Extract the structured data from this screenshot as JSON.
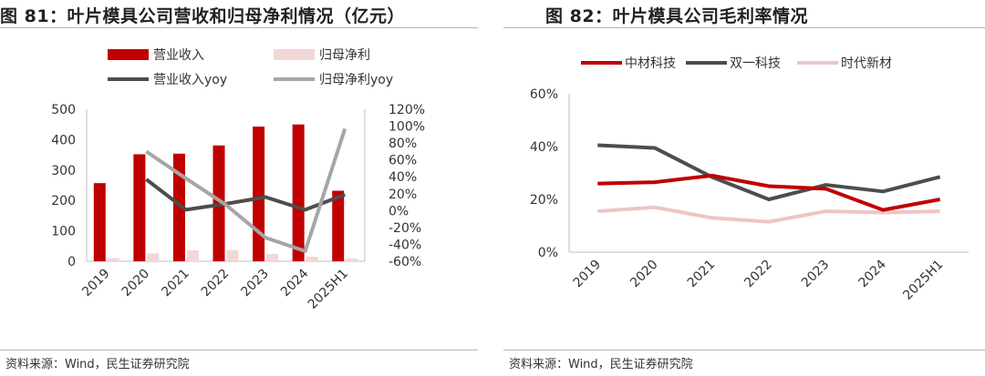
{
  "figure_left": {
    "title": "图 81：叶片模具公司营收和归母净利情况（亿元）",
    "source": "资料来源：Wind，民生证券研究院"
  },
  "figure_right": {
    "title": "图 82：叶片模具公司毛利率情况",
    "source": "资料来源：Wind，民生证券研究院"
  },
  "chart_data": [
    {
      "type": "bar",
      "title": "图 81：叶片模具公司营收和归母净利情况（亿元）",
      "categories": [
        "2019",
        "2020",
        "2021",
        "2022",
        "2023",
        "2024",
        "2025H1"
      ],
      "ylim": [
        0,
        500
      ],
      "yticks": [
        0,
        100,
        200,
        300,
        400,
        500
      ],
      "y2lim": [
        -0.6,
        1.2
      ],
      "y2ticks": [
        "-60%",
        "-40%",
        "-20%",
        "0%",
        "20%",
        "40%",
        "60%",
        "80%",
        "100%",
        "120%"
      ],
      "legend_position": "top",
      "grid": false,
      "series": [
        {
          "name": "营业收入",
          "kind": "bar",
          "axis": "left",
          "color": "#c00000",
          "values": [
            257,
            352,
            354,
            381,
            443,
            450,
            232
          ]
        },
        {
          "name": "归母净利",
          "kind": "bar",
          "axis": "left",
          "color": "#f2d7d7",
          "values": [
            10,
            26,
            36,
            37,
            24,
            15,
            9
          ]
        },
        {
          "name": "营业收入yoy",
          "kind": "line",
          "axis": "right",
          "color": "#4d4d4d",
          "values": [
            null,
            0.37,
            0.01,
            0.08,
            0.16,
            0.01,
            0.19
          ]
        },
        {
          "name": "归母净利yoy",
          "kind": "line",
          "axis": "right",
          "color": "#a6a6a6",
          "values": [
            null,
            0.7,
            0.38,
            0.07,
            -0.32,
            -0.48,
            0.97
          ]
        }
      ]
    },
    {
      "type": "line",
      "title": "图 82：叶片模具公司毛利率情况",
      "categories": [
        "2019",
        "2020",
        "2021",
        "2022",
        "2023",
        "2024",
        "2025H1"
      ],
      "ylim": [
        0,
        0.6
      ],
      "yticks": [
        "0%",
        "20%",
        "40%",
        "60%"
      ],
      "legend_position": "top",
      "grid": false,
      "series": [
        {
          "name": "中材科技",
          "color": "#c00000",
          "values": [
            0.26,
            0.265,
            0.29,
            0.25,
            0.24,
            0.16,
            0.2
          ]
        },
        {
          "name": "双一科技",
          "color": "#4d4d4d",
          "values": [
            0.405,
            0.395,
            0.285,
            0.2,
            0.255,
            0.23,
            0.285
          ]
        },
        {
          "name": "时代新材",
          "color": "#f0c4c4",
          "values": [
            0.155,
            0.17,
            0.13,
            0.115,
            0.155,
            0.15,
            0.155
          ]
        }
      ]
    }
  ]
}
